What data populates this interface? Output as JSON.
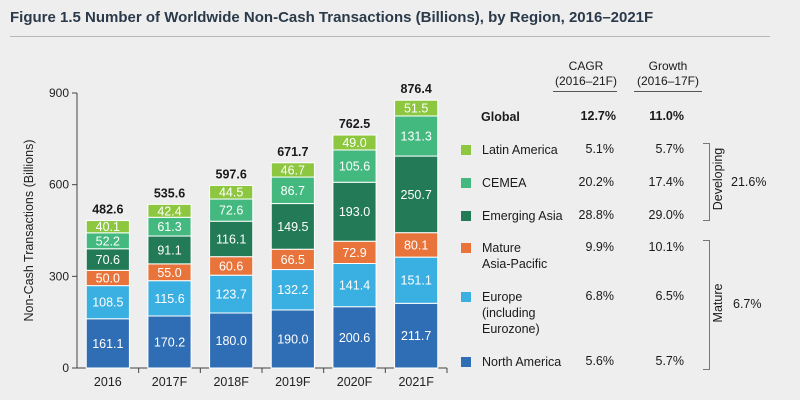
{
  "title": "Figure 1.5 Number of Worldwide Non-Cash Transactions (Billions), by Region, 2016–2021F",
  "table": {
    "cagr_header": [
      "CAGR",
      "(2016–21F)"
    ],
    "growth_header": [
      "Growth",
      "(2016–17F)"
    ],
    "global": {
      "label": "Global",
      "cagr": "12.7%",
      "growth": "11.0%"
    },
    "rows": [
      {
        "label": "Latin America",
        "cagr": "5.1%",
        "growth": "5.7%",
        "color": "#8dc63f"
      },
      {
        "label": "CEMEA",
        "cagr": "20.2%",
        "growth": "17.4%",
        "color": "#43b97f"
      },
      {
        "label": "Emerging Asia",
        "cagr": "28.8%",
        "growth": "29.0%",
        "color": "#237a57"
      },
      {
        "label": "Mature\nAsia-Pacific",
        "cagr": "9.9%",
        "growth": "10.1%",
        "color": "#e8743b"
      },
      {
        "label": "Europe\n(including\nEurozone)",
        "cagr": "6.8%",
        "growth": "6.5%",
        "color": "#3ab0e2"
      },
      {
        "label": "North America",
        "cagr": "5.6%",
        "growth": "5.7%",
        "color": "#2f6db5"
      }
    ],
    "groups": [
      {
        "label": "Developing",
        "value": "21.6%"
      },
      {
        "label": "Mature",
        "value": "6.7%"
      }
    ]
  },
  "chart_data": {
    "type": "bar",
    "stacked": true,
    "categories": [
      "2016",
      "2017F",
      "2018F",
      "2019F",
      "2020F",
      "2021F"
    ],
    "ylabel": "Non-Cash Transactions (Billions)",
    "ylim": [
      0,
      900
    ],
    "yticks": [
      0,
      300,
      600,
      900
    ],
    "series": [
      {
        "name": "North America",
        "color": "#2f6db5",
        "values": [
          161.1,
          170.2,
          180.0,
          190.0,
          200.6,
          211.7
        ]
      },
      {
        "name": "Europe (including Eurozone)",
        "color": "#3ab0e2",
        "values": [
          108.5,
          115.6,
          123.7,
          132.2,
          141.4,
          151.1
        ]
      },
      {
        "name": "Mature Asia-Pacific",
        "color": "#e8743b",
        "values": [
          50.0,
          55.0,
          60.6,
          66.5,
          72.9,
          80.1
        ]
      },
      {
        "name": "Emerging Asia",
        "color": "#237a57",
        "values": [
          70.6,
          91.1,
          116.1,
          149.5,
          193.0,
          250.7
        ]
      },
      {
        "name": "CEMEA",
        "color": "#43b97f",
        "values": [
          52.2,
          61.3,
          72.6,
          86.7,
          105.6,
          131.3
        ]
      },
      {
        "name": "Latin America",
        "color": "#8dc63f",
        "values": [
          40.1,
          42.4,
          44.5,
          46.7,
          49.0,
          51.5
        ]
      }
    ],
    "totals": [
      482.6,
      535.6,
      597.6,
      671.7,
      762.5,
      876.4
    ],
    "labels": [
      [
        "161.1",
        "170.2",
        "180.0",
        "190.0",
        "200.6",
        "211.7"
      ],
      [
        "108.5",
        "115.6",
        "123.7",
        "132.2",
        "141.4",
        "151.1"
      ],
      [
        "50.0",
        "55.0",
        "60.6",
        "66.5",
        "72.9",
        "80.1"
      ],
      [
        "70.6",
        "91.1",
        "116.1",
        "149.5",
        "193.0",
        "250.7"
      ],
      [
        "52.2",
        "61.3",
        "72.6",
        "86.7",
        "105.6",
        "131.3"
      ],
      [
        "40.1",
        "42.4",
        "44.5",
        "46.7",
        "49.0",
        "51.5"
      ]
    ],
    "total_labels": [
      "482.6",
      "535.6",
      "597.6",
      "671.7",
      "762.5",
      "876.4"
    ]
  }
}
